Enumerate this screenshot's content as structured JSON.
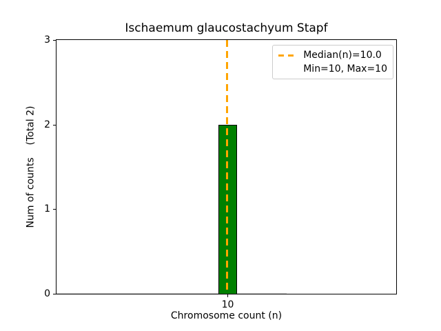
{
  "chart_data": {
    "type": "bar",
    "title": "Ischaemum glaucostachyum Stapf",
    "xlabel": "Chromosome count (n)",
    "ylabel": "Num of counts",
    "total_annotation": "(Total 2)",
    "ylabel_display": "Num of counts    (Total 2)",
    "categories": [
      "10"
    ],
    "values": [
      2
    ],
    "total": 2,
    "median_n": 10.0,
    "min_n": 10,
    "max_n": 10,
    "ylim": [
      0,
      3
    ],
    "yticks": [
      0,
      1,
      2,
      3
    ],
    "grid": false,
    "legend_position": "upper right",
    "bar_color": "#008000",
    "bar_edge_color": "#000000",
    "median_color": "#FFA500"
  },
  "legend": {
    "median_label": "Median(n)=10.0",
    "minmax_label": "Min=10, Max=10"
  }
}
